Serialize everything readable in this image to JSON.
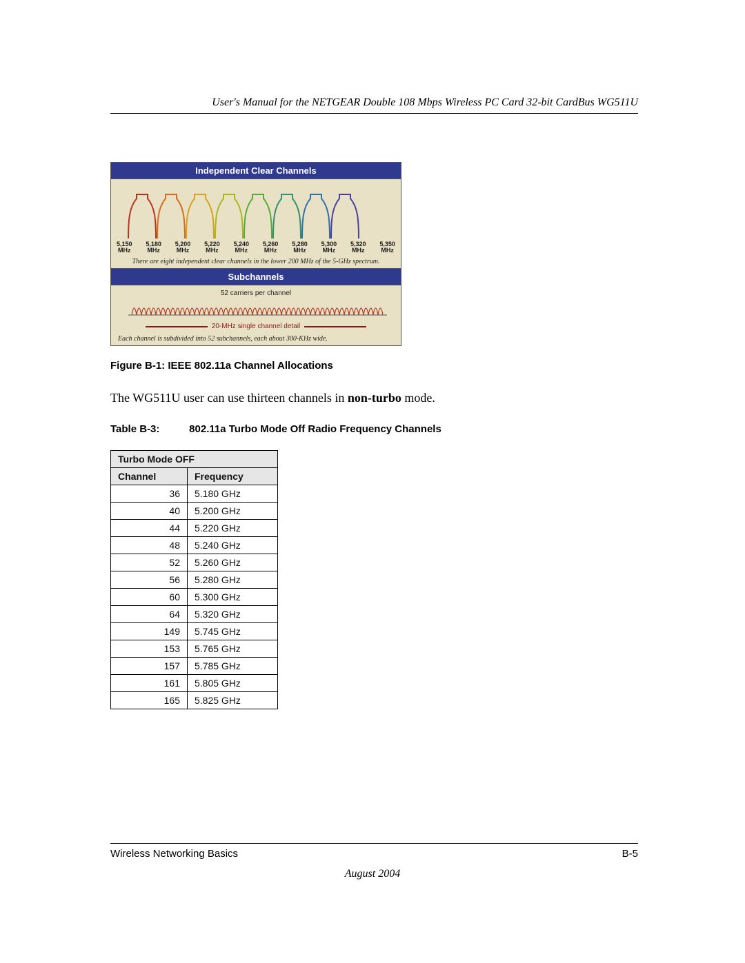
{
  "header_title": "User's Manual for the NETGEAR Double 108 Mbps Wireless PC Card 32-bit CardBus WG511U",
  "diagram": {
    "panel1": {
      "title": "Independent Clear Channels",
      "freq_labels": [
        "5,150 MHz",
        "5,180 MHz",
        "5,200 MHz",
        "5,220 MHz",
        "5,240 MHz",
        "5,260 MHz",
        "5,280 MHz",
        "5,300 MHz",
        "5,320 MHz",
        "5,350 MHz"
      ],
      "caption": "There are eight independent clear channels in the lower 200 MHz of the 5-GHz spectrum.",
      "lobe_colors": [
        "#b9341e",
        "#d66b1e",
        "#d4a21e",
        "#a9b81e",
        "#5aa83a",
        "#2f8f6e",
        "#2f6fa8",
        "#4a3fa0"
      ]
    },
    "panel2": {
      "title": "Subchannels",
      "carriers_label": "52 carriers per channel",
      "detail_label": "20-MHz single channel detail",
      "caption": "Each channel is subdivided into 52 subchannels, each about 300-KHz wide.",
      "carrier_color": "#b9341e"
    }
  },
  "figure_caption": "Figure B-1:  IEEE 802.11a Channel Allocations",
  "body_text_prefix": "The WG511U user can use thirteen channels in ",
  "body_text_bold": "non-turbo",
  "body_text_suffix": " mode.",
  "table_caption_label": "Table B-3:",
  "table_caption_text": "802.11a Turbo Mode Off Radio Frequency Channels",
  "table": {
    "super_header": "Turbo Mode OFF",
    "col_channel": "Channel",
    "col_frequency": "Frequency",
    "rows": [
      {
        "ch": "36",
        "fr": "5.180 GHz"
      },
      {
        "ch": "40",
        "fr": "5.200 GHz"
      },
      {
        "ch": "44",
        "fr": "5.220 GHz"
      },
      {
        "ch": "48",
        "fr": "5.240 GHz"
      },
      {
        "ch": "52",
        "fr": "5.260 GHz"
      },
      {
        "ch": "56",
        "fr": "5.280 GHz"
      },
      {
        "ch": "60",
        "fr": "5.300 GHz"
      },
      {
        "ch": "64",
        "fr": "5.320 GHz"
      },
      {
        "ch": "149",
        "fr": "5.745 GHz"
      },
      {
        "ch": "153",
        "fr": "5.765 GHz"
      },
      {
        "ch": "157",
        "fr": "5.785 GHz"
      },
      {
        "ch": "161",
        "fr": "5.805 GHz"
      },
      {
        "ch": "165",
        "fr": "5.825 GHz"
      }
    ]
  },
  "footer_left": "Wireless Networking Basics",
  "footer_right": "B-5",
  "footer_date": "August 2004"
}
